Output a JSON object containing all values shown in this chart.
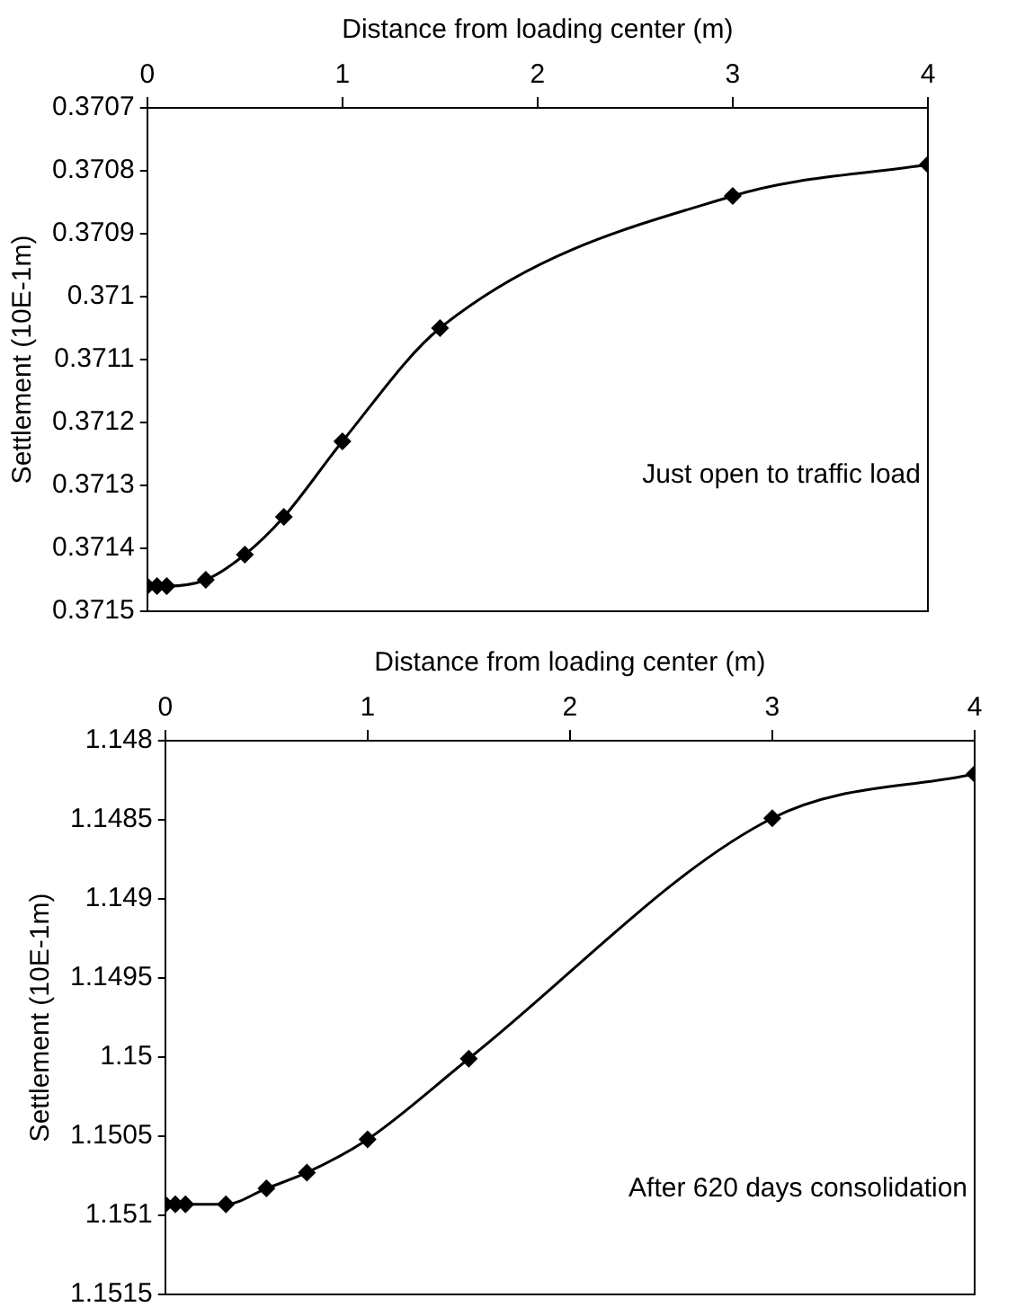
{
  "chart_data": [
    {
      "type": "line",
      "xlabel": "Distance from loading center (m)",
      "ylabel": "Settlement (10E-1m)",
      "x": [
        0,
        0.05,
        0.1,
        0.3,
        0.5,
        0.7,
        1,
        1.5,
        3,
        4
      ],
      "series": [
        {
          "color": "#000000",
          "values": [
            0.37146,
            0.37146,
            0.37146,
            0.37145,
            0.37141,
            0.37135,
            0.37123,
            0.37105,
            0.37084,
            0.37079
          ]
        }
      ],
      "xlim": [
        0,
        4
      ],
      "xticks": [
        0,
        1,
        2,
        3,
        4
      ],
      "ylim": [
        0.3715,
        0.3707
      ],
      "yticks": [
        0.3707,
        0.3708,
        0.3709,
        0.371,
        0.3711,
        0.3712,
        0.3713,
        0.3714,
        0.3715
      ],
      "annotations": [
        "Just open to traffic load"
      ],
      "marker": "diamond",
      "grid": false,
      "legend": false
    },
    {
      "type": "line",
      "xlabel": "Distance from loading center (m)",
      "ylabel": "Settlement (10E-1m)",
      "x": [
        0,
        0.05,
        0.1,
        0.3,
        0.5,
        0.7,
        1,
        1.5,
        3,
        4
      ],
      "series": [
        {
          "color": "#000000",
          "values": [
            1.15093,
            1.15093,
            1.15093,
            1.15093,
            1.15083,
            1.15073,
            1.15052,
            1.15001,
            1.14849,
            1.14821
          ]
        }
      ],
      "xlim": [
        0,
        4
      ],
      "xticks": [
        0,
        1,
        2,
        3,
        4
      ],
      "ylim": [
        1.1515,
        1.148
      ],
      "yticks": [
        1.148,
        1.1485,
        1.149,
        1.1495,
        1.15,
        1.1505,
        1.151,
        1.1515
      ],
      "annotations": [
        "After 620 days consolidation"
      ],
      "marker": "diamond",
      "grid": false,
      "legend": false
    }
  ]
}
